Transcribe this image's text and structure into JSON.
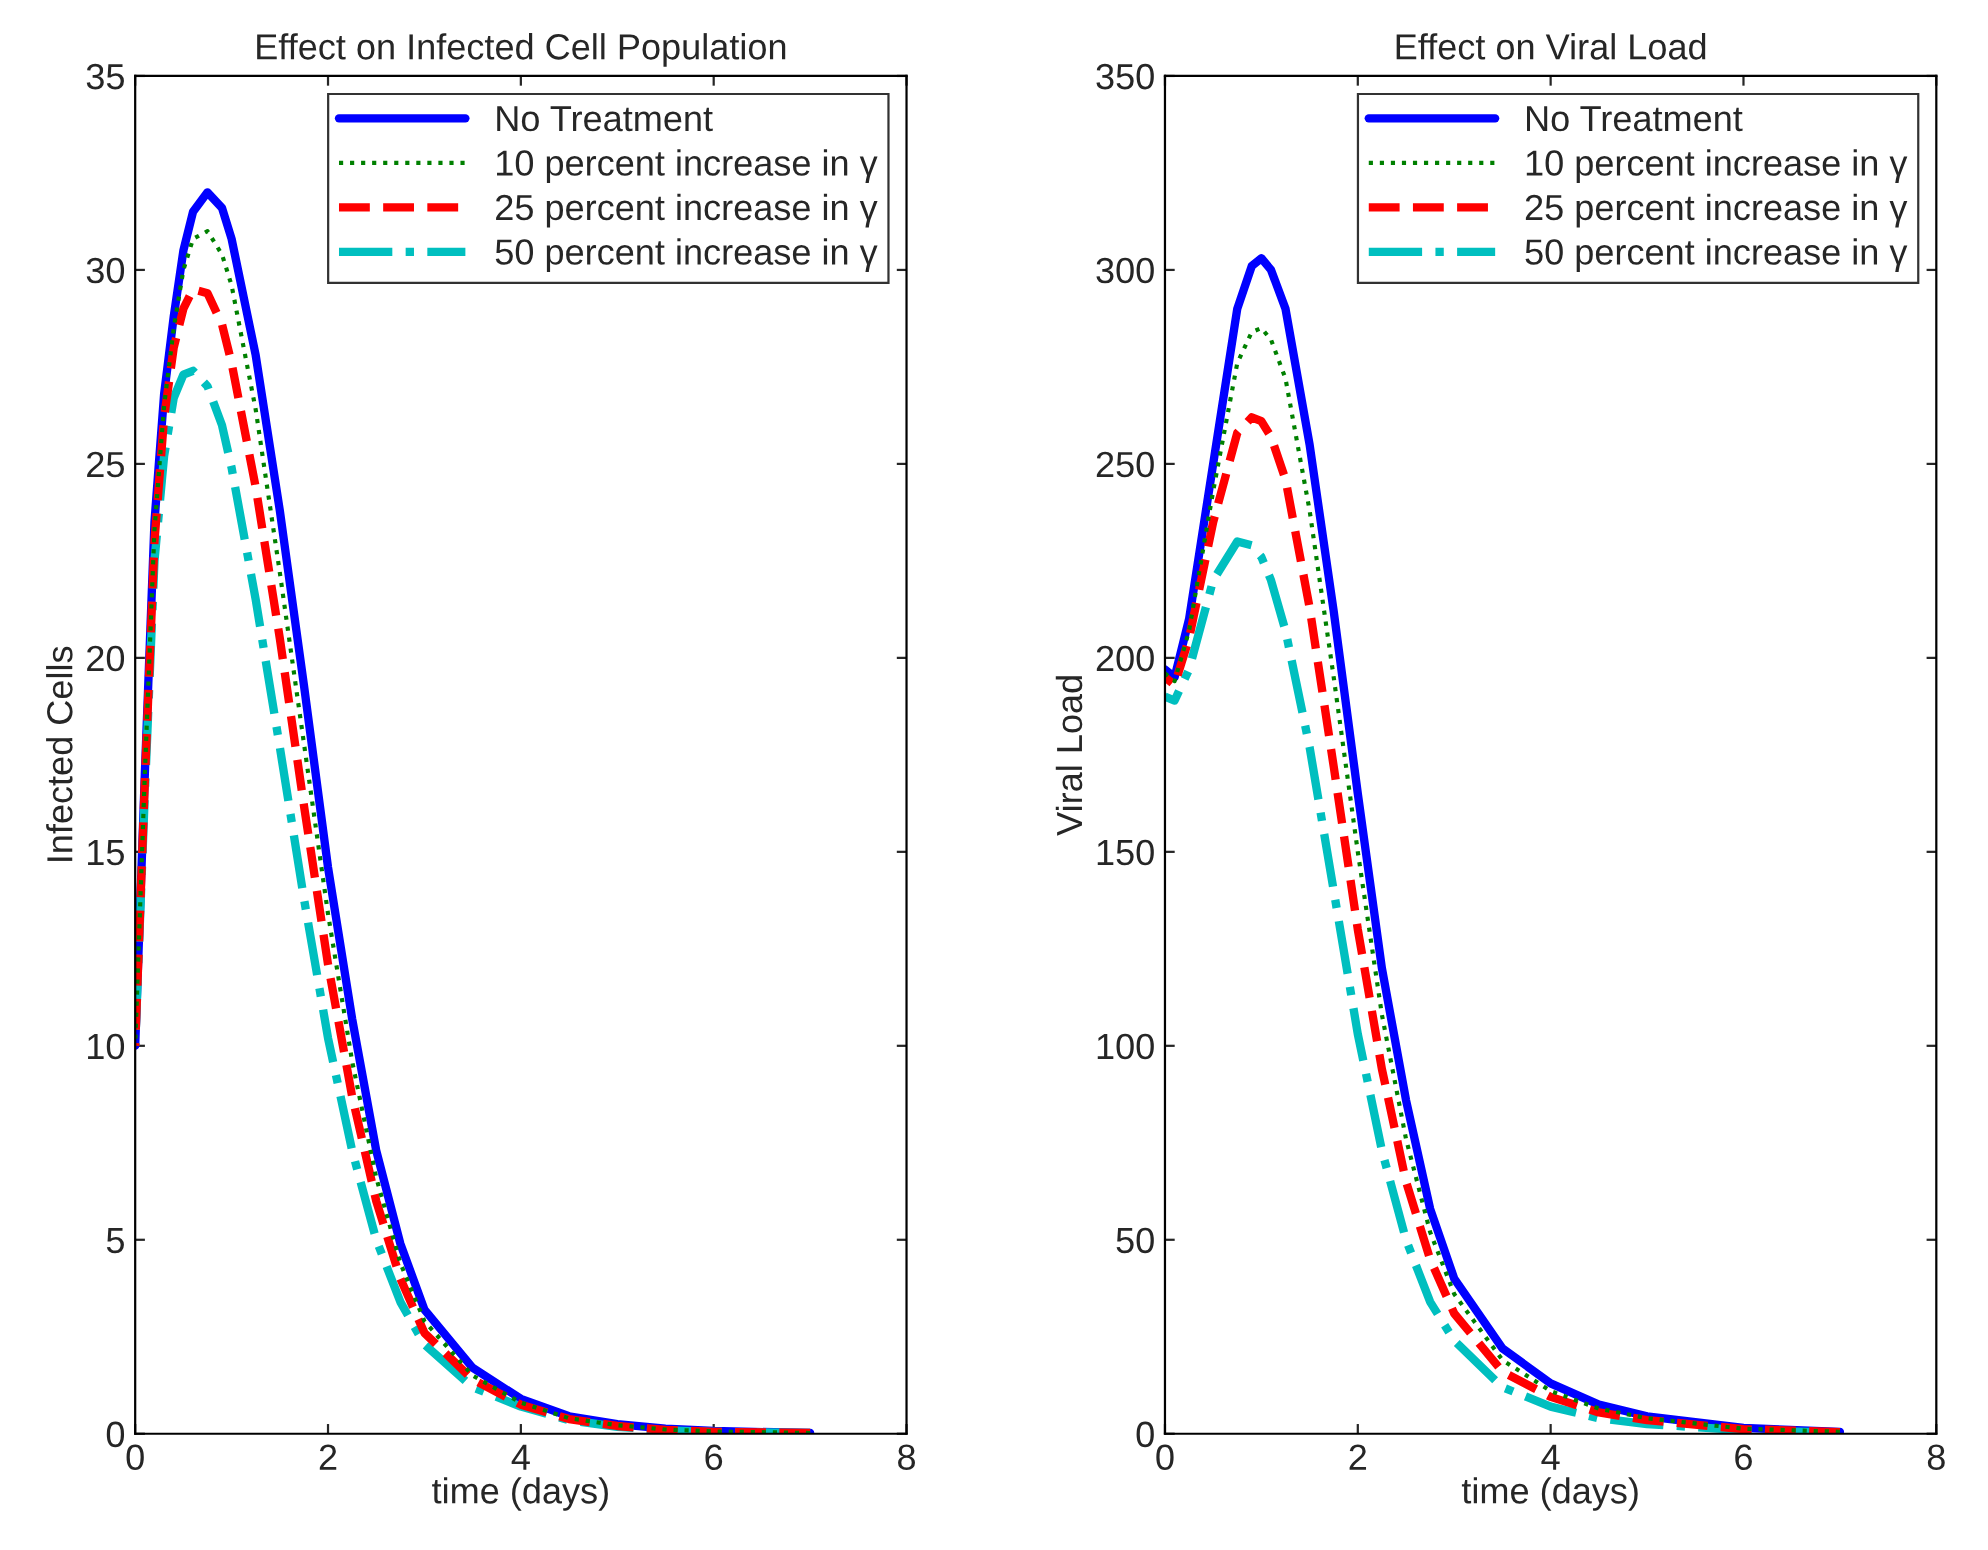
{
  "chart_data": [
    {
      "type": "line",
      "title": "Effect on Infected Cell Population",
      "xlabel": "time (days)",
      "ylabel": "Infected Cells",
      "xlim": [
        0,
        8
      ],
      "xticks": [
        0,
        2,
        4,
        6,
        8
      ],
      "ylim": [
        0,
        35
      ],
      "yticks": [
        0,
        5,
        10,
        15,
        20,
        25,
        30,
        35
      ],
      "grid": false,
      "legend": "top right",
      "marker": "none",
      "x": [
        0,
        0.1,
        0.2,
        0.3,
        0.4,
        0.5,
        0.6,
        0.75,
        0.9,
        1.0,
        1.25,
        1.5,
        1.75,
        2.0,
        2.25,
        2.5,
        2.75,
        3.0,
        3.5,
        4,
        4.5,
        5,
        5.5,
        6,
        7
      ],
      "series": [
        {
          "name": "No Treatment",
          "color": "#0000ff",
          "line_style": "solid",
          "values": [
            10,
            17,
            23.5,
            26.8,
            28.8,
            30.5,
            31.5,
            32,
            31.6,
            30.8,
            27.8,
            23.8,
            19.3,
            14.6,
            10.7,
            7.3,
            4.9,
            3.2,
            1.7,
            0.9,
            0.45,
            0.25,
            0.13,
            0.07,
            0.02
          ]
        },
        {
          "name": "10 percent increase in γ",
          "color": "#008000",
          "line_style": "dotted",
          "values": [
            10,
            17,
            23.3,
            26.5,
            28.5,
            30,
            30.8,
            31,
            30.4,
            29.6,
            26.4,
            22.2,
            17.8,
            13.4,
            9.6,
            6.6,
            4.4,
            2.9,
            1.5,
            0.8,
            0.4,
            0.22,
            0.11,
            0.06,
            0.02
          ]
        },
        {
          "name": "25 percent increase in γ",
          "color": "#ff0000",
          "line_style": "dashed",
          "values": [
            10,
            16.8,
            23,
            26.2,
            28,
            29,
            29.5,
            29.4,
            28.6,
            27.6,
            24.4,
            20.5,
            16.2,
            12.1,
            8.7,
            6.0,
            4.0,
            2.6,
            1.4,
            0.75,
            0.38,
            0.2,
            0.1,
            0.05,
            0.02
          ]
        },
        {
          "name": "50 percent increase in γ",
          "color": "#00bfbf",
          "line_style": "dashdot",
          "values": [
            10,
            16.5,
            22.5,
            25.2,
            26.7,
            27.3,
            27.4,
            27.0,
            26.0,
            24.9,
            21.5,
            17.7,
            13.8,
            10.2,
            7.3,
            5.0,
            3.4,
            2.3,
            1.2,
            0.7,
            0.35,
            0.18,
            0.09,
            0.05,
            0.02
          ]
        }
      ]
    },
    {
      "type": "line",
      "title": "Effect on Viral Load",
      "xlabel": "time (days)",
      "ylabel": "Viral Load",
      "xlim": [
        0,
        8
      ],
      "xticks": [
        0,
        2,
        4,
        6,
        8
      ],
      "ylim": [
        0,
        350
      ],
      "yticks": [
        0,
        50,
        100,
        150,
        200,
        250,
        300,
        350
      ],
      "grid": false,
      "legend": "top right",
      "marker": "none",
      "x": [
        0,
        0.1,
        0.25,
        0.5,
        0.75,
        0.9,
        1.0,
        1.1,
        1.25,
        1.5,
        1.75,
        2.0,
        2.25,
        2.5,
        2.75,
        3.0,
        3.5,
        4,
        4.5,
        5,
        6,
        7
      ],
      "series": [
        {
          "name": "No Treatment",
          "color": "#0000ff",
          "line_style": "solid",
          "values": [
            197,
            195,
            210,
            250,
            290,
            301,
            303,
            300,
            290,
            255,
            212,
            165,
            120,
            86,
            58,
            40,
            22,
            13,
            7.5,
            4.5,
            1.5,
            0.5
          ]
        },
        {
          "name": "10 percent increase in γ",
          "color": "#008000",
          "line_style": "dotted",
          "values": [
            196,
            194,
            207,
            243,
            276,
            284,
            285,
            282,
            272,
            238,
            195,
            150,
            108,
            76,
            52,
            36,
            19,
            11,
            6.5,
            4,
            1.3,
            0.5
          ]
        },
        {
          "name": "25 percent increase in γ",
          "color": "#ff0000",
          "line_style": "dashed",
          "values": [
            195,
            193,
            205,
            235,
            258,
            262,
            261,
            257,
            246,
            213,
            172,
            130,
            94,
            65,
            45,
            31,
            16,
            9.5,
            5.5,
            3.5,
            1.2,
            0.4
          ]
        },
        {
          "name": "50 percent increase in γ",
          "color": "#00bfbf",
          "line_style": "dashdot",
          "values": [
            190,
            189,
            197,
            220,
            230,
            229,
            226,
            220,
            207,
            177,
            140,
            103,
            73,
            50,
            34,
            24,
            12,
            7,
            4,
            2.5,
            0.9,
            0.3
          ]
        }
      ]
    }
  ]
}
